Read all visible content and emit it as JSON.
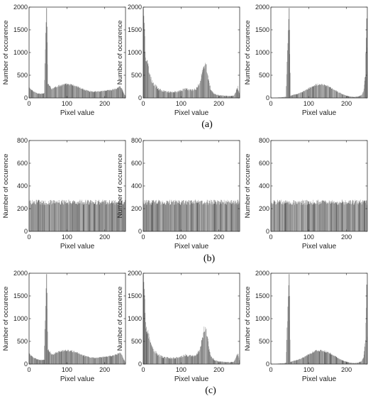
{
  "captions": [
    "(a)",
    "(b)",
    "(c)"
  ],
  "chart_data": [
    {
      "type": "bar",
      "row": 0,
      "col": 0,
      "xlabel": "Pixel value",
      "ylabel": "Number of occurence",
      "xlim": [
        0,
        255
      ],
      "ylim": [
        0,
        2000
      ],
      "xticks": [
        0,
        100,
        200
      ],
      "yticks": [
        0,
        500,
        1000,
        1500,
        2000
      ],
      "grid": false,
      "legend": "none",
      "x": [
        0,
        10,
        20,
        30,
        40,
        46,
        50,
        60,
        70,
        80,
        90,
        100,
        110,
        120,
        130,
        140,
        150,
        160,
        170,
        180,
        190,
        200,
        210,
        220,
        230,
        240,
        245,
        250,
        255
      ],
      "values": [
        230,
        150,
        110,
        90,
        100,
        1980,
        330,
        200,
        240,
        270,
        290,
        300,
        290,
        270,
        240,
        200,
        170,
        150,
        140,
        140,
        150,
        160,
        170,
        180,
        200,
        250,
        210,
        110,
        40
      ],
      "noise": 0.08
    },
    {
      "type": "bar",
      "row": 0,
      "col": 1,
      "xlabel": "Pixel value",
      "ylabel": "Number of occurence",
      "xlim": [
        0,
        255
      ],
      "ylim": [
        0,
        2000
      ],
      "xticks": [
        0,
        100,
        200
      ],
      "yticks": [
        0,
        500,
        1000,
        1500,
        2000
      ],
      "grid": false,
      "legend": "none",
      "x": [
        0,
        3,
        6,
        10,
        15,
        20,
        30,
        40,
        50,
        60,
        70,
        80,
        90,
        100,
        110,
        120,
        130,
        140,
        150,
        155,
        160,
        165,
        170,
        175,
        180,
        190,
        200,
        210,
        220,
        230,
        240,
        250,
        255
      ],
      "values": [
        1960,
        1500,
        900,
        780,
        600,
        420,
        280,
        200,
        160,
        140,
        130,
        135,
        140,
        160,
        200,
        180,
        170,
        200,
        330,
        550,
        740,
        760,
        560,
        300,
        150,
        80,
        60,
        50,
        45,
        40,
        50,
        250,
        60
      ],
      "noise": 0.15
    },
    {
      "type": "bar",
      "row": 0,
      "col": 2,
      "xlabel": "Pixel value",
      "ylabel": "Number of occurence",
      "xlim": [
        0,
        255
      ],
      "ylim": [
        0,
        2000
      ],
      "xticks": [
        0,
        100,
        200
      ],
      "yticks": [
        0,
        500,
        1000,
        1500,
        2000
      ],
      "grid": false,
      "legend": "none",
      "x": [
        0,
        10,
        20,
        30,
        40,
        48,
        52,
        60,
        70,
        80,
        90,
        100,
        110,
        120,
        130,
        140,
        150,
        160,
        170,
        180,
        190,
        200,
        210,
        220,
        230,
        240,
        245,
        250,
        253,
        255
      ],
      "values": [
        0,
        5,
        10,
        15,
        25,
        1980,
        50,
        70,
        90,
        120,
        160,
        210,
        260,
        290,
        300,
        290,
        260,
        220,
        170,
        120,
        80,
        50,
        30,
        20,
        30,
        60,
        150,
        500,
        1750,
        600
      ],
      "noise": 0.08
    },
    {
      "type": "bar",
      "row": 1,
      "col": 0,
      "xlabel": "Pixel value",
      "ylabel": "Number of occurence",
      "xlim": [
        0,
        255
      ],
      "ylim": [
        0,
        800
      ],
      "xticks": [
        0,
        100,
        200
      ],
      "yticks": [
        0,
        200,
        400,
        600,
        800
      ],
      "grid": false,
      "legend": "none",
      "x": [
        0,
        255
      ],
      "values": [
        256,
        256
      ],
      "noise": 0.09
    },
    {
      "type": "bar",
      "row": 1,
      "col": 1,
      "xlabel": "Pixel value",
      "ylabel": "Number of occurence",
      "xlim": [
        0,
        255
      ],
      "ylim": [
        0,
        800
      ],
      "xticks": [
        0,
        100,
        200
      ],
      "yticks": [
        0,
        200,
        400,
        600,
        800
      ],
      "grid": false,
      "legend": "none",
      "x": [
        0,
        255
      ],
      "values": [
        256,
        256
      ],
      "noise": 0.09
    },
    {
      "type": "bar",
      "row": 1,
      "col": 2,
      "xlabel": "Pixel value",
      "ylabel": "Number of occurence",
      "xlim": [
        0,
        255
      ],
      "ylim": [
        0,
        800
      ],
      "xticks": [
        0,
        100,
        200
      ],
      "yticks": [
        0,
        200,
        400,
        600,
        800
      ],
      "grid": false,
      "legend": "none",
      "x": [
        0,
        255
      ],
      "values": [
        256,
        256
      ],
      "noise": 0.09
    },
    {
      "type": "bar",
      "row": 2,
      "col": 0,
      "xlabel": "Pixel value",
      "ylabel": "Number of occurence",
      "xlim": [
        0,
        255
      ],
      "ylim": [
        0,
        2000
      ],
      "xticks": [
        0,
        100,
        200
      ],
      "yticks": [
        0,
        500,
        1000,
        1500,
        2000
      ],
      "grid": false,
      "legend": "none",
      "x": [
        0,
        10,
        20,
        30,
        40,
        46,
        50,
        60,
        70,
        80,
        90,
        100,
        110,
        120,
        130,
        140,
        150,
        160,
        170,
        180,
        190,
        200,
        210,
        220,
        230,
        240,
        245,
        250,
        255
      ],
      "values": [
        230,
        150,
        110,
        90,
        100,
        1980,
        330,
        200,
        240,
        270,
        290,
        300,
        290,
        270,
        240,
        200,
        170,
        150,
        140,
        140,
        150,
        160,
        170,
        180,
        200,
        250,
        210,
        110,
        40
      ],
      "noise": 0.08
    },
    {
      "type": "bar",
      "row": 2,
      "col": 1,
      "xlabel": "Pixel value",
      "ylabel": "Number of occurence",
      "xlim": [
        0,
        255
      ],
      "ylim": [
        0,
        2000
      ],
      "xticks": [
        0,
        100,
        200
      ],
      "yticks": [
        0,
        500,
        1000,
        1500,
        2000
      ],
      "grid": false,
      "legend": "none",
      "x": [
        0,
        3,
        6,
        10,
        15,
        20,
        30,
        40,
        50,
        60,
        70,
        80,
        90,
        100,
        110,
        120,
        130,
        140,
        150,
        155,
        160,
        165,
        170,
        175,
        180,
        190,
        200,
        210,
        220,
        230,
        240,
        250,
        255
      ],
      "values": [
        1960,
        1500,
        900,
        780,
        600,
        420,
        280,
        200,
        160,
        140,
        130,
        135,
        140,
        160,
        200,
        180,
        170,
        200,
        330,
        550,
        740,
        760,
        560,
        300,
        150,
        80,
        60,
        50,
        45,
        40,
        50,
        250,
        60
      ],
      "noise": 0.15
    },
    {
      "type": "bar",
      "row": 2,
      "col": 2,
      "xlabel": "Pixel value",
      "ylabel": "Number of occurence",
      "xlim": [
        0,
        255
      ],
      "ylim": [
        0,
        2000
      ],
      "xticks": [
        0,
        100,
        200
      ],
      "yticks": [
        0,
        500,
        1000,
        1500,
        2000
      ],
      "grid": false,
      "legend": "none",
      "x": [
        0,
        10,
        20,
        30,
        40,
        48,
        52,
        60,
        70,
        80,
        90,
        100,
        110,
        120,
        130,
        140,
        150,
        160,
        170,
        180,
        190,
        200,
        210,
        220,
        230,
        240,
        245,
        250,
        253,
        255
      ],
      "values": [
        0,
        5,
        10,
        15,
        25,
        1980,
        50,
        70,
        90,
        120,
        160,
        210,
        260,
        290,
        300,
        290,
        260,
        220,
        170,
        120,
        80,
        50,
        30,
        20,
        30,
        60,
        150,
        500,
        1750,
        600
      ],
      "noise": 0.08
    }
  ]
}
